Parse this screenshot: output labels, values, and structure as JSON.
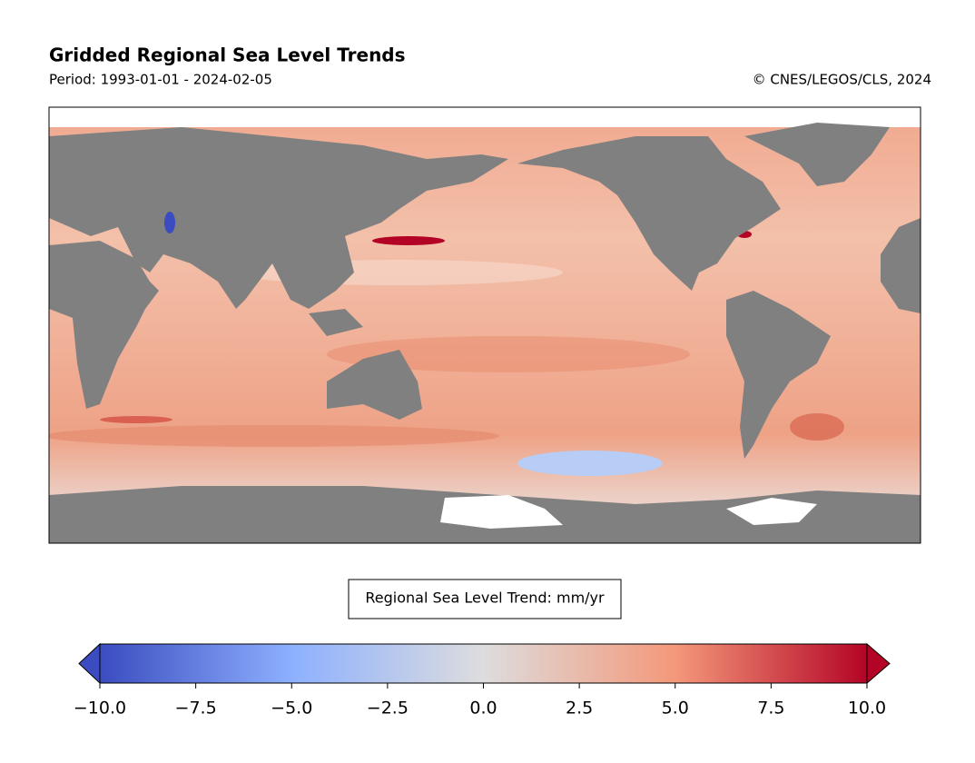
{
  "chart_data": {
    "type": "colorbar-map",
    "title": "Gridded Regional Sea Level Trends",
    "subtitle": "Period: 1993-01-01 - 2024-02-05",
    "credit": "© CNES/LEGOS/CLS, 2024",
    "colorbar_label": "Regional Sea Level Trend: mm/yr",
    "clim": [
      -10,
      10
    ],
    "ticks": [
      {
        "value": -10,
        "label": "−10.0"
      },
      {
        "value": -7.5,
        "label": "−7.5"
      },
      {
        "value": -5,
        "label": "−5.0"
      },
      {
        "value": -2.5,
        "label": "−2.5"
      },
      {
        "value": 0,
        "label": "0.0"
      },
      {
        "value": 2.5,
        "label": "2.5"
      },
      {
        "value": 5,
        "label": "5.0"
      },
      {
        "value": 7.5,
        "label": "7.5"
      },
      {
        "value": 10,
        "label": "10.0"
      }
    ],
    "colormap": [
      "#3b4cc0",
      "#8db0fe",
      "#dddddd",
      "#f4987a",
      "#b40426"
    ]
  }
}
